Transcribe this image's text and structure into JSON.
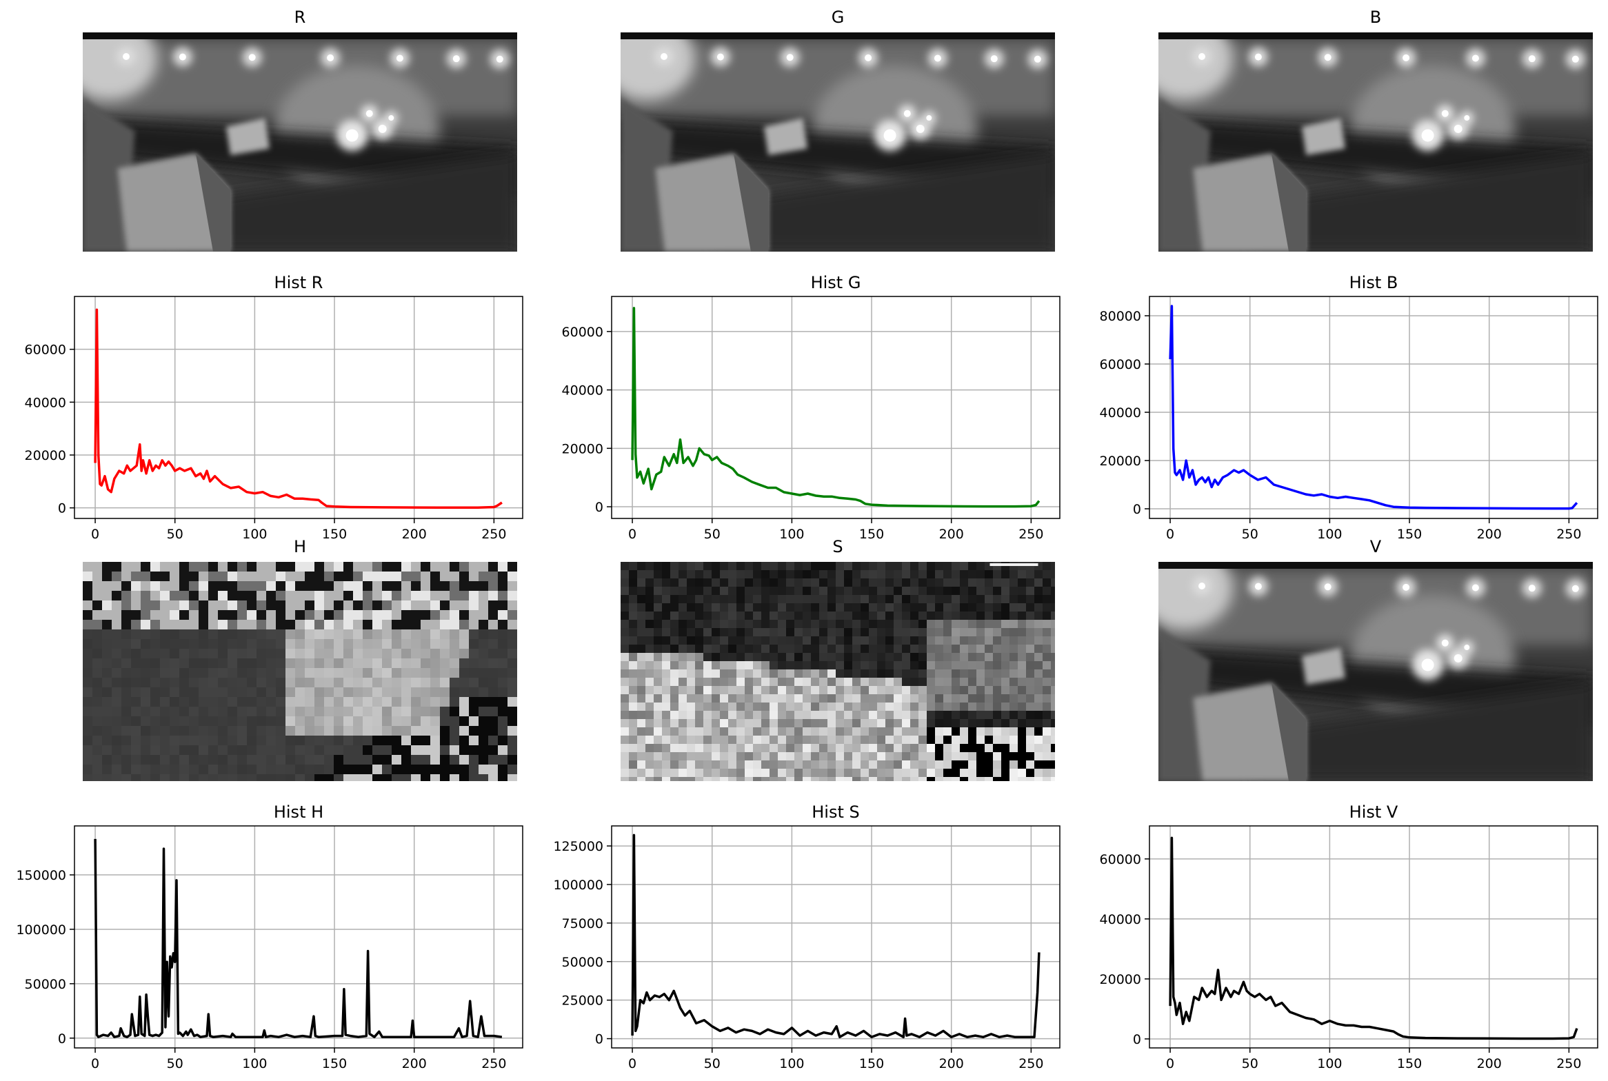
{
  "figure": {
    "panels": [
      {
        "kind": "image",
        "title": "R",
        "channel": "r"
      },
      {
        "kind": "image",
        "title": "G",
        "channel": "g"
      },
      {
        "kind": "image",
        "title": "B",
        "channel": "b"
      },
      {
        "kind": "hist",
        "title": "Hist R",
        "chart_index": 0
      },
      {
        "kind": "hist",
        "title": "Hist G",
        "chart_index": 1
      },
      {
        "kind": "hist",
        "title": "Hist B",
        "chart_index": 2
      },
      {
        "kind": "image",
        "title": "H",
        "channel": "h"
      },
      {
        "kind": "image",
        "title": "S",
        "channel": "s"
      },
      {
        "kind": "image",
        "title": "V",
        "channel": "v"
      },
      {
        "kind": "hist",
        "title": "Hist H",
        "chart_index": 3
      },
      {
        "kind": "hist",
        "title": "Hist S",
        "chart_index": 4
      },
      {
        "kind": "hist",
        "title": "Hist V",
        "chart_index": 5
      }
    ]
  },
  "chart_data": [
    {
      "type": "line",
      "title": "Hist R",
      "color": "#ff0000",
      "grid": true,
      "xlim": [
        -13,
        268
      ],
      "ylim": [
        -4000,
        80000
      ],
      "xticks": [
        0,
        50,
        100,
        150,
        200,
        250
      ],
      "yticks": [
        0,
        20000,
        40000,
        60000
      ],
      "series": [
        {
          "x": [
            0,
            1,
            2,
            3,
            4,
            6,
            8,
            10,
            12,
            15,
            18,
            20,
            22,
            24,
            26,
            28,
            29,
            30,
            32,
            34,
            36,
            38,
            40,
            42,
            44,
            46,
            48,
            50,
            53,
            56,
            60,
            63,
            66,
            68,
            70,
            72,
            75,
            80,
            85,
            90,
            95,
            100,
            105,
            110,
            115,
            120,
            125,
            130,
            135,
            140,
            142,
            145,
            150,
            160,
            180,
            200,
            220,
            240,
            250,
            252,
            255
          ],
          "y": [
            17000,
            75000,
            20000,
            9000,
            8500,
            12000,
            7000,
            6000,
            11000,
            14000,
            13000,
            16000,
            14000,
            15000,
            16000,
            24000,
            14000,
            18000,
            13000,
            18000,
            14000,
            16000,
            15000,
            18000,
            16000,
            17500,
            16000,
            14000,
            15000,
            14000,
            15000,
            12000,
            13000,
            11000,
            14000,
            10000,
            12000,
            9000,
            7500,
            8000,
            6000,
            5500,
            6000,
            4500,
            4000,
            5000,
            3500,
            3500,
            3200,
            3000,
            2000,
            700,
            500,
            300,
            200,
            150,
            100,
            100,
            300,
            800,
            2000
          ]
        }
      ]
    },
    {
      "type": "line",
      "title": "Hist G",
      "color": "#008000",
      "grid": true,
      "xlim": [
        -13,
        268
      ],
      "ylim": [
        -4000,
        72000
      ],
      "xticks": [
        0,
        50,
        100,
        150,
        200,
        250
      ],
      "yticks": [
        0,
        20000,
        40000,
        60000
      ],
      "series": [
        {
          "x": [
            0,
            1,
            2,
            3,
            5,
            7,
            10,
            12,
            15,
            18,
            20,
            23,
            26,
            28,
            30,
            32,
            35,
            38,
            40,
            42,
            45,
            48,
            50,
            53,
            56,
            60,
            63,
            66,
            70,
            75,
            80,
            85,
            90,
            95,
            100,
            105,
            110,
            115,
            120,
            125,
            130,
            135,
            140,
            143,
            146,
            150,
            160,
            180,
            200,
            220,
            240,
            250,
            253,
            255
          ],
          "y": [
            16000,
            68000,
            18000,
            10000,
            12000,
            8000,
            13000,
            6000,
            11000,
            12000,
            17000,
            14000,
            18000,
            15000,
            23000,
            15000,
            17000,
            14000,
            16000,
            20000,
            18000,
            17500,
            16000,
            17000,
            15000,
            14000,
            13000,
            11000,
            10000,
            8500,
            7500,
            6500,
            6500,
            5000,
            4500,
            4000,
            4500,
            3800,
            3500,
            3500,
            3000,
            2800,
            2500,
            2000,
            1000,
            700,
            400,
            250,
            150,
            100,
            100,
            200,
            600,
            2000
          ]
        }
      ]
    },
    {
      "type": "line",
      "title": "Hist B",
      "color": "#0000ff",
      "grid": true,
      "xlim": [
        -13,
        268
      ],
      "ylim": [
        -4000,
        88000
      ],
      "xticks": [
        0,
        50,
        100,
        150,
        200,
        250
      ],
      "yticks": [
        0,
        20000,
        40000,
        60000,
        80000
      ],
      "series": [
        {
          "x": [
            0,
            1,
            2,
            3,
            4,
            6,
            8,
            10,
            12,
            14,
            16,
            18,
            20,
            22,
            24,
            26,
            28,
            30,
            33,
            36,
            40,
            43,
            46,
            50,
            55,
            60,
            65,
            70,
            75,
            80,
            85,
            90,
            95,
            100,
            105,
            110,
            115,
            120,
            125,
            130,
            135,
            140,
            150,
            160,
            180,
            200,
            220,
            240,
            250,
            252,
            255
          ],
          "y": [
            62000,
            84000,
            25000,
            15000,
            14000,
            16000,
            12000,
            20000,
            13000,
            16000,
            10000,
            12000,
            13000,
            11000,
            13000,
            9000,
            12000,
            10000,
            13000,
            14000,
            16000,
            15000,
            16000,
            14000,
            12000,
            13000,
            10000,
            9000,
            8000,
            7000,
            6000,
            5500,
            6000,
            5000,
            4500,
            5000,
            4500,
            4000,
            3500,
            2500,
            1500,
            800,
            500,
            400,
            300,
            200,
            150,
            100,
            100,
            300,
            2500
          ]
        }
      ]
    },
    {
      "type": "line",
      "title": "Hist H",
      "color": "#000000",
      "grid": true,
      "xlim": [
        -13,
        268
      ],
      "ylim": [
        -9000,
        195000
      ],
      "xticks": [
        0,
        50,
        100,
        150,
        200,
        250
      ],
      "yticks": [
        0,
        50000,
        100000,
        150000
      ],
      "series": [
        {
          "x": [
            0,
            1,
            2,
            5,
            8,
            10,
            12,
            15,
            16,
            18,
            20,
            22,
            23,
            25,
            27,
            28,
            29,
            31,
            32,
            33,
            34,
            36,
            38,
            40,
            42,
            43,
            44,
            45,
            46,
            47,
            48,
            49,
            50,
            51,
            52,
            53,
            55,
            57,
            58,
            60,
            62,
            64,
            66,
            70,
            71,
            72,
            74,
            80,
            85,
            86,
            88,
            100,
            105,
            106,
            107,
            110,
            115,
            120,
            125,
            130,
            135,
            137,
            138,
            140,
            150,
            155,
            156,
            157,
            160,
            165,
            170,
            171,
            172,
            175,
            178,
            180,
            190,
            198,
            199,
            200,
            210,
            225,
            228,
            230,
            233,
            235,
            237,
            240,
            242,
            244,
            250,
            255
          ],
          "y": [
            183000,
            3000,
            1000,
            3000,
            2000,
            5000,
            1000,
            2000,
            9000,
            2000,
            1000,
            3000,
            22000,
            2000,
            3000,
            38000,
            4000,
            2000,
            40000,
            20000,
            3000,
            2000,
            3000,
            2000,
            5000,
            174000,
            10000,
            70000,
            20000,
            75000,
            65000,
            78000,
            70000,
            145000,
            4000,
            5000,
            2000,
            6000,
            3000,
            8000,
            2000,
            3000,
            1000,
            2000,
            22000,
            2000,
            1000,
            2000,
            1000,
            4000,
            1000,
            1000,
            1000,
            7000,
            1000,
            2000,
            1000,
            3000,
            1000,
            2000,
            1000,
            20000,
            2000,
            1000,
            2000,
            2000,
            45000,
            3000,
            2000,
            1000,
            2000,
            80000,
            4000,
            1000,
            6000,
            1000,
            1000,
            1000,
            16000,
            1000,
            1000,
            1000,
            9000,
            1000,
            2000,
            34000,
            2000,
            1000,
            20000,
            2000,
            2000,
            1000
          ]
        }
      ]
    },
    {
      "type": "line",
      "title": "Hist S",
      "color": "#000000",
      "grid": true,
      "xlim": [
        -13,
        268
      ],
      "ylim": [
        -6000,
        138000
      ],
      "xticks": [
        0,
        50,
        100,
        150,
        200,
        250
      ],
      "yticks": [
        0,
        25000,
        50000,
        75000,
        100000,
        125000
      ],
      "series": [
        {
          "x": [
            0,
            1,
            2,
            3,
            5,
            7,
            9,
            11,
            14,
            17,
            20,
            23,
            26,
            30,
            33,
            36,
            40,
            45,
            50,
            55,
            60,
            65,
            70,
            75,
            80,
            85,
            90,
            95,
            100,
            105,
            110,
            115,
            120,
            125,
            128,
            130,
            135,
            140,
            145,
            150,
            155,
            160,
            165,
            170,
            171,
            172,
            175,
            180,
            185,
            190,
            195,
            200,
            205,
            210,
            215,
            220,
            225,
            230,
            235,
            240,
            245,
            250,
            252,
            254,
            255
          ],
          "y": [
            2000,
            132000,
            5000,
            8000,
            25000,
            23000,
            30000,
            25000,
            28000,
            27000,
            29000,
            25000,
            31000,
            20000,
            15000,
            18000,
            10000,
            12000,
            8000,
            5000,
            7000,
            4000,
            6000,
            5000,
            3000,
            6000,
            4000,
            3000,
            7000,
            2000,
            5000,
            2000,
            4000,
            3000,
            8000,
            1000,
            4000,
            2000,
            5000,
            1000,
            3000,
            2000,
            4000,
            1000,
            13000,
            2000,
            3000,
            1000,
            4000,
            2000,
            5000,
            1000,
            3000,
            1000,
            2000,
            1000,
            3000,
            1000,
            2000,
            1000,
            1000,
            1000,
            1000,
            30000,
            56000
          ]
        }
      ]
    },
    {
      "type": "line",
      "title": "Hist V",
      "color": "#000000",
      "grid": true,
      "xlim": [
        -13,
        268
      ],
      "ylim": [
        -3000,
        71000
      ],
      "xticks": [
        0,
        50,
        100,
        150,
        200,
        250
      ],
      "yticks": [
        0,
        20000,
        40000,
        60000
      ],
      "series": [
        {
          "x": [
            0,
            1,
            2,
            3,
            4,
            6,
            8,
            10,
            12,
            15,
            18,
            20,
            23,
            26,
            28,
            30,
            32,
            35,
            38,
            40,
            43,
            46,
            48,
            50,
            53,
            56,
            60,
            63,
            66,
            70,
            75,
            80,
            85,
            90,
            95,
            100,
            105,
            110,
            115,
            120,
            125,
            130,
            135,
            140,
            143,
            146,
            150,
            160,
            180,
            200,
            220,
            240,
            250,
            253,
            255
          ],
          "y": [
            11000,
            67000,
            14000,
            12000,
            8000,
            12000,
            5000,
            9000,
            6000,
            14000,
            13000,
            17000,
            14000,
            16000,
            15000,
            23000,
            13000,
            17000,
            14000,
            16000,
            15000,
            19000,
            16000,
            15000,
            14000,
            15000,
            13000,
            14000,
            11000,
            12000,
            9000,
            8000,
            7000,
            6500,
            5000,
            6000,
            5000,
            4500,
            4500,
            4000,
            4000,
            3500,
            3000,
            2500,
            1500,
            800,
            500,
            300,
            200,
            150,
            100,
            100,
            200,
            600,
            3500
          ]
        }
      ]
    }
  ]
}
